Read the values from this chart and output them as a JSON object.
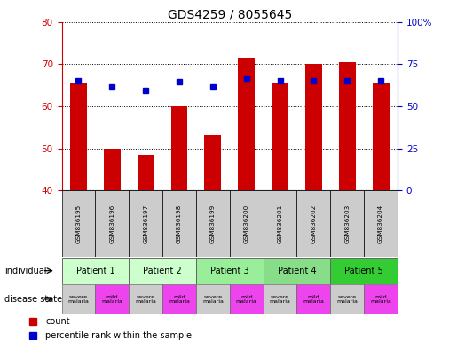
{
  "title": "GDS4259 / 8055645",
  "samples": [
    "GSM836195",
    "GSM836196",
    "GSM836197",
    "GSM836198",
    "GSM836199",
    "GSM836200",
    "GSM836201",
    "GSM836202",
    "GSM836203",
    "GSM836204"
  ],
  "bar_heights": [
    65.5,
    50.0,
    48.5,
    60.0,
    53.0,
    71.5,
    65.5,
    70.0,
    70.5,
    65.5
  ],
  "percentile_values": [
    65.0,
    61.5,
    59.5,
    64.5,
    61.5,
    66.5,
    65.5,
    65.0,
    65.5,
    65.5
  ],
  "ylim_left": [
    40,
    80
  ],
  "ylim_right": [
    0,
    100
  ],
  "yticks_left": [
    40,
    50,
    60,
    70,
    80
  ],
  "yticks_right": [
    0,
    25,
    50,
    75,
    100
  ],
  "ytick_labels_right": [
    "0",
    "25",
    "50",
    "75",
    "100%"
  ],
  "bar_color": "#cc0000",
  "dot_color": "#0000cc",
  "bar_width": 0.5,
  "patients": [
    {
      "label": "Patient 1",
      "span": [
        0,
        2
      ],
      "color": "#ccffcc"
    },
    {
      "label": "Patient 2",
      "span": [
        2,
        4
      ],
      "color": "#ccffcc"
    },
    {
      "label": "Patient 3",
      "span": [
        4,
        6
      ],
      "color": "#99ee99"
    },
    {
      "label": "Patient 4",
      "span": [
        6,
        8
      ],
      "color": "#88dd88"
    },
    {
      "label": "Patient 5",
      "span": [
        8,
        10
      ],
      "color": "#33cc33"
    }
  ],
  "disease_states": [
    {
      "label": "severe\nmalaria",
      "span": [
        0,
        1
      ],
      "color": "#cccccc"
    },
    {
      "label": "mild\nmalaria",
      "span": [
        1,
        2
      ],
      "color": "#ee44ee"
    },
    {
      "label": "severe\nmalaria",
      "span": [
        2,
        3
      ],
      "color": "#cccccc"
    },
    {
      "label": "mild\nmalaria",
      "span": [
        3,
        4
      ],
      "color": "#ee44ee"
    },
    {
      "label": "severe\nmalaria",
      "span": [
        4,
        5
      ],
      "color": "#cccccc"
    },
    {
      "label": "mild\nmalaria",
      "span": [
        5,
        6
      ],
      "color": "#ee44ee"
    },
    {
      "label": "severe\nmalaria",
      "span": [
        6,
        7
      ],
      "color": "#cccccc"
    },
    {
      "label": "mild\nmalaria",
      "span": [
        7,
        8
      ],
      "color": "#ee44ee"
    },
    {
      "label": "severe\nmalaria",
      "span": [
        8,
        9
      ],
      "color": "#cccccc"
    },
    {
      "label": "mild\nmalaria",
      "span": [
        9,
        10
      ],
      "color": "#ee44ee"
    }
  ],
  "legend_items": [
    {
      "color": "#cc0000",
      "label": "count"
    },
    {
      "color": "#0000cc",
      "label": "percentile rank within the sample"
    }
  ],
  "left_axis_color": "#cc0000",
  "right_axis_color": "#0000cc",
  "background_color": "#ffffff",
  "sample_row_color": "#cccccc",
  "figsize": [
    5.15,
    3.84
  ],
  "dpi": 100
}
